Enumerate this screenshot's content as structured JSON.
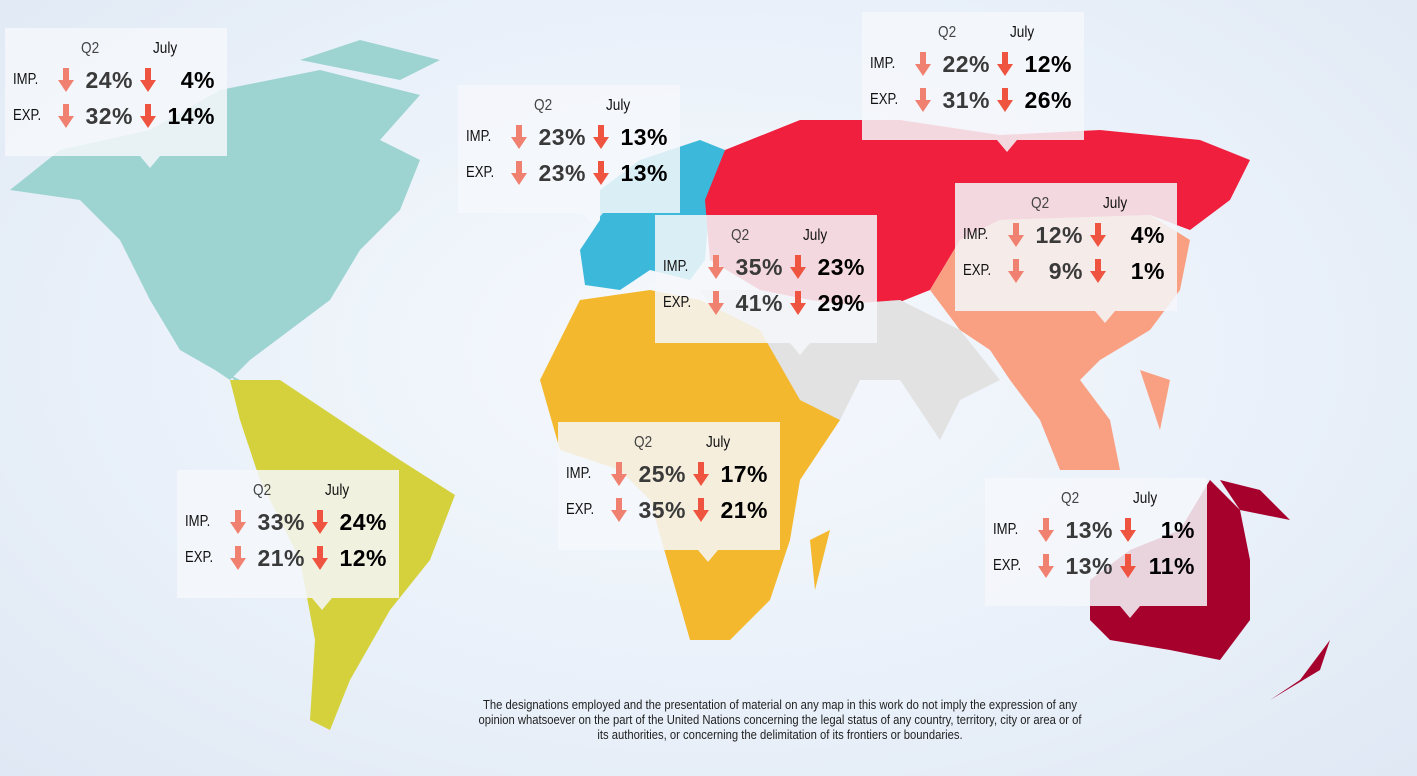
{
  "headers": {
    "q2": "Q2",
    "july": "July"
  },
  "row_labels": {
    "imp": "IMP.",
    "exp": "EXP."
  },
  "colors": {
    "north_america": "#9dd4d2",
    "europe": "#3cb8da",
    "russia_cis": "#f01f3d",
    "africa": "#f3b82e",
    "south_america": "#d5d13c",
    "east_asia": "#f9a083",
    "oceania": "#a6002d",
    "west_south_asia": "#e2e2e2",
    "arrow_q2": "#f08070",
    "arrow_july": "#ef5440"
  },
  "trend_icon": "arrow-down-icon",
  "regions": [
    {
      "id": "north-america",
      "imp_q2": "24%",
      "imp_july": "4%",
      "exp_q2": "32%",
      "exp_july": "14%"
    },
    {
      "id": "europe",
      "imp_q2": "23%",
      "imp_july": "13%",
      "exp_q2": "23%",
      "exp_july": "13%"
    },
    {
      "id": "russia-cis",
      "imp_q2": "22%",
      "imp_july": "12%",
      "exp_q2": "31%",
      "exp_july": "26%"
    },
    {
      "id": "west-asia",
      "imp_q2": "35%",
      "imp_july": "23%",
      "exp_q2": "41%",
      "exp_july": "29%"
    },
    {
      "id": "east-asia",
      "imp_q2": "12%",
      "imp_july": "4%",
      "exp_q2": "9%",
      "exp_july": "1%"
    },
    {
      "id": "africa",
      "imp_q2": "25%",
      "imp_july": "17%",
      "exp_q2": "35%",
      "exp_july": "21%"
    },
    {
      "id": "south-america",
      "imp_q2": "33%",
      "imp_july": "24%",
      "exp_q2": "21%",
      "exp_july": "12%"
    },
    {
      "id": "oceania",
      "imp_q2": "13%",
      "imp_july": "1%",
      "exp_q2": "13%",
      "exp_july": "11%"
    }
  ],
  "footer": "The designations employed and the presentation of material on any map in this  work do not imply the expression of any opinion whatsoever on the part of the  United Nations concerning the legal status of any country, territory, city or area or of its authorities, or concerning the delimitation of its frontiers or boundaries."
}
